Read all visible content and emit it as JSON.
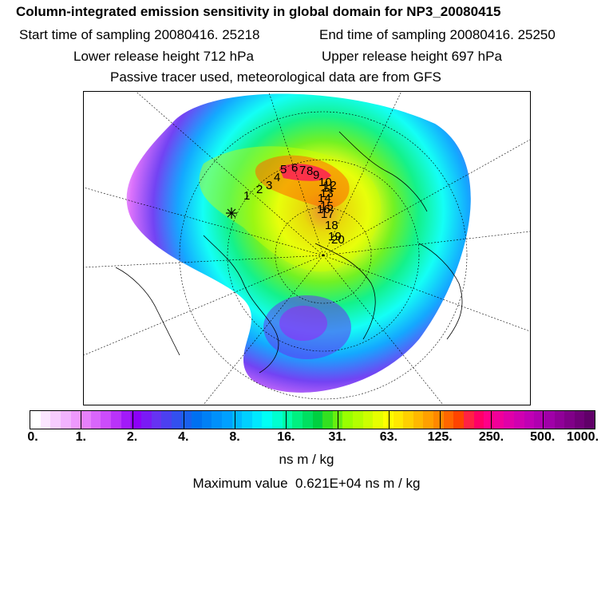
{
  "header": {
    "title": "Column-integrated emission sensitivity in global domain for NP3_20080415",
    "start_time_label": "Start time of sampling",
    "start_time_value": "20080416. 25218",
    "end_time_label": "End time of sampling",
    "end_time_value": "20080416. 25250",
    "lower_release_label": "Lower release height",
    "lower_release_value": "712 hPa",
    "upper_release_label": "Upper release height",
    "upper_release_value": "697 hPa",
    "tracer_note": "Passive tracer used, meteorological data are from GFS"
  },
  "map": {
    "projection": "polar stereographic (north)",
    "trajectory_labels": [
      "1",
      "2",
      "3",
      "4",
      "5",
      "6",
      "7",
      "8",
      "9",
      "10",
      "11",
      "12",
      "13",
      "14",
      "15",
      "16",
      "17",
      "18",
      "19",
      "20"
    ]
  },
  "colorbar": {
    "tick_labels": [
      "0.",
      "1.",
      "2.",
      "4.",
      "8.",
      "16.",
      "31.",
      "63.",
      "125.",
      "250.",
      "500.",
      "1000."
    ],
    "colors": [
      "#ffffff",
      "#fbe6ff",
      "#f7cdfe",
      "#f2b3fe",
      "#ee99fd",
      "#e680fc",
      "#d966fb",
      "#cc4cfb",
      "#b933fa",
      "#a21af9",
      "#8c00f8",
      "#7a1af5",
      "#6633f2",
      "#4c40f0",
      "#3350ee",
      "#1a60ee",
      "#0070f0",
      "#0080f5",
      "#0090fa",
      "#00a0ff",
      "#00b8ff",
      "#00d0ff",
      "#00e8ff",
      "#00fff5",
      "#00ffd0",
      "#00ffa8",
      "#00f080",
      "#00e060",
      "#00d040",
      "#33e020",
      "#66f010",
      "#99ff00",
      "#b3ff00",
      "#ccff00",
      "#e6ff00",
      "#ffff00",
      "#ffe800",
      "#ffd000",
      "#ffb800",
      "#ffa000",
      "#ff8800",
      "#ff6600",
      "#ff4400",
      "#ff2244",
      "#ff0066",
      "#ff0088",
      "#f0009a",
      "#e000a8",
      "#d000b0",
      "#c000b4",
      "#b000b0",
      "#a000a8",
      "#900098",
      "#800088",
      "#700078",
      "#600068"
    ],
    "units": "ns m / kg"
  },
  "max_value": {
    "label": "Maximum value",
    "value": "0.621E+04",
    "units": "ns m / kg"
  }
}
